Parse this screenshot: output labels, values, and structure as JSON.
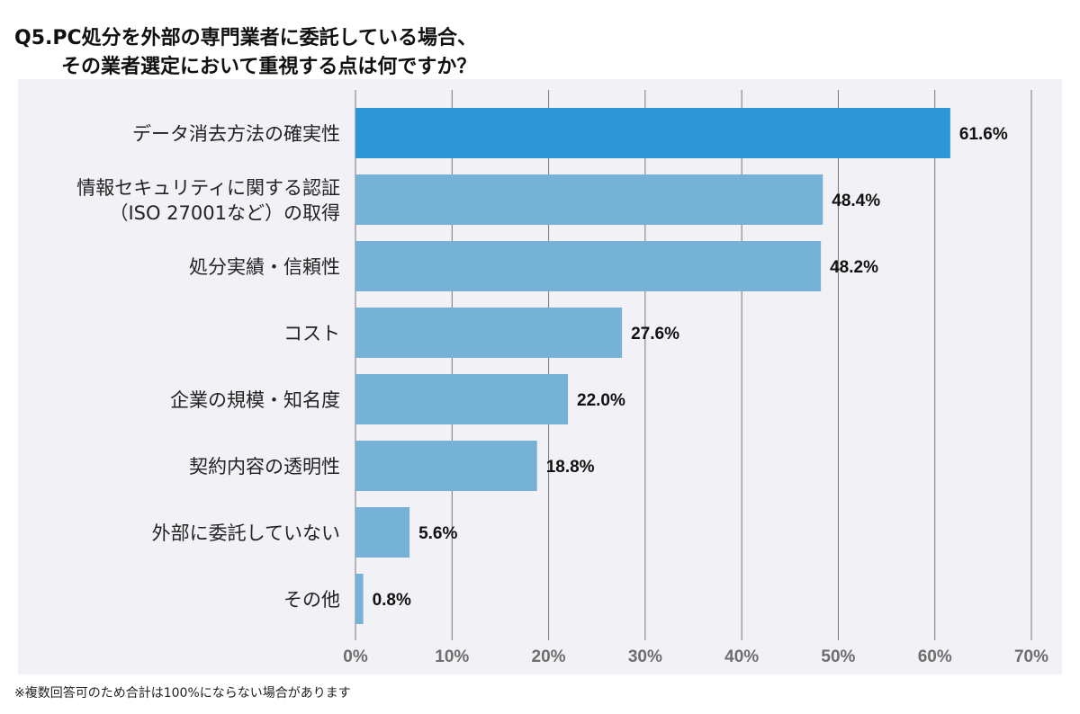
{
  "title_line1": "Q5.PC処分を外部の専門業者に委託している場合、",
  "title_line2": "その業者選定において重視する点は何ですか？",
  "footnote": "※複数回答可のため合計は100%にならない場合があります",
  "colors": {
    "highlight": "#2e97d8",
    "bar": "#76b1d6",
    "background": "#f2f1f5",
    "grid": "#777777"
  },
  "chart_data": {
    "type": "bar",
    "orientation": "horizontal",
    "categories": [
      [
        "データ消去方法の確実性"
      ],
      [
        "情報セキュリティに関する認証",
        "（ISO 27001など）の取得"
      ],
      [
        "処分実績・信頼性"
      ],
      [
        "コスト"
      ],
      [
        "企業の規模・知名度"
      ],
      [
        "契約内容の透明性"
      ],
      [
        "外部に委託していない"
      ],
      [
        "その他"
      ]
    ],
    "values": [
      61.6,
      48.4,
      48.2,
      27.6,
      22.0,
      18.8,
      5.6,
      0.8
    ],
    "value_labels": [
      "61.6%",
      "48.4%",
      "48.2%",
      "27.6%",
      "22.0%",
      "18.8%",
      "5.6%",
      "0.8%"
    ],
    "xlim": [
      0,
      70
    ],
    "xticks": [
      0,
      10,
      20,
      30,
      40,
      50,
      60,
      70
    ],
    "xtick_labels": [
      "0%",
      "10%",
      "20%",
      "30%",
      "40%",
      "50%",
      "60%",
      "70%"
    ],
    "grid": true,
    "highlighted_index": 0
  }
}
